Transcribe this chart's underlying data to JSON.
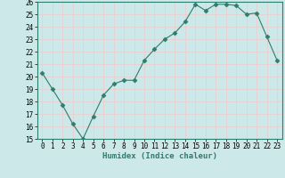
{
  "x": [
    0,
    1,
    2,
    3,
    4,
    5,
    6,
    7,
    8,
    9,
    10,
    11,
    12,
    13,
    14,
    15,
    16,
    17,
    18,
    19,
    20,
    21,
    22,
    23
  ],
  "y": [
    20.3,
    19.0,
    17.7,
    16.2,
    15.0,
    16.8,
    18.5,
    19.4,
    19.7,
    19.7,
    21.3,
    22.2,
    23.0,
    23.5,
    24.4,
    25.8,
    25.3,
    25.8,
    25.8,
    25.7,
    25.0,
    25.1,
    23.2,
    21.3
  ],
  "line_color": "#2e7d6e",
  "marker": "D",
  "marker_size": 2.5,
  "bg_color": "#cce8e8",
  "grid_color": "#e8d0d0",
  "xlabel": "Humidex (Indice chaleur)",
  "ylim": [
    15,
    26
  ],
  "xlim": [
    -0.5,
    23.5
  ],
  "yticks": [
    15,
    16,
    17,
    18,
    19,
    20,
    21,
    22,
    23,
    24,
    25,
    26
  ],
  "xticks": [
    0,
    1,
    2,
    3,
    4,
    5,
    6,
    7,
    8,
    9,
    10,
    11,
    12,
    13,
    14,
    15,
    16,
    17,
    18,
    19,
    20,
    21,
    22,
    23
  ],
  "xlabel_fontsize": 6.5,
  "tick_fontsize": 5.5
}
